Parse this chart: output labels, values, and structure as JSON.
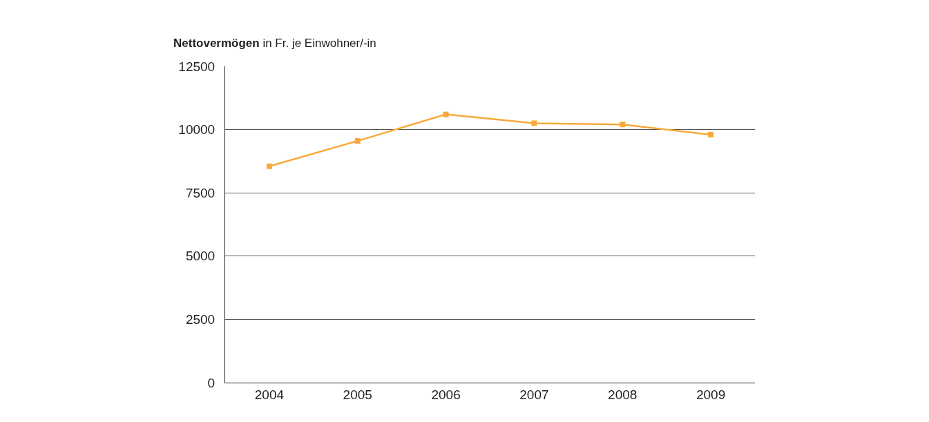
{
  "chart_data": {
    "type": "line",
    "title": "Nettovermögen",
    "subtitle": "in Fr. je Einwohner/-in",
    "categories": [
      "2004",
      "2005",
      "2006",
      "2007",
      "2008",
      "2009"
    ],
    "series": [
      {
        "color": "#f7a93b",
        "values": [
          8550,
          9550,
          10600,
          10250,
          10200,
          9800
        ]
      }
    ],
    "ylim": [
      0,
      12500
    ],
    "yticks": [
      0,
      2500,
      5000,
      7500,
      10000,
      12500
    ],
    "grid": "y",
    "marker": "square",
    "line_style": "solid"
  }
}
